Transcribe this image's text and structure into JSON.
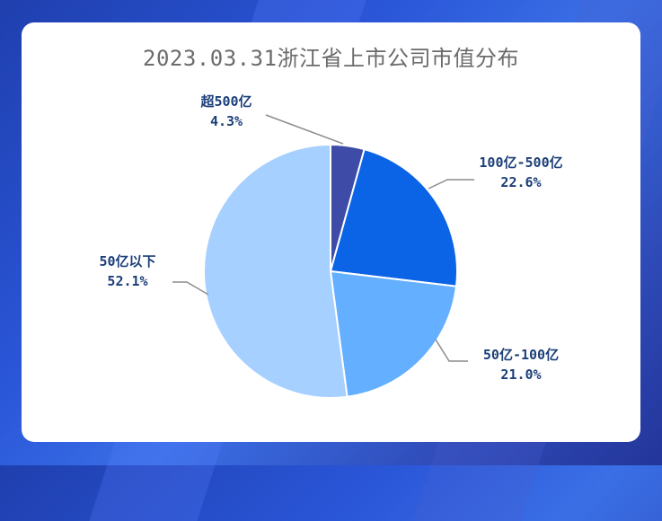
{
  "chart_data": {
    "type": "pie",
    "title": "2023.03.31浙江省上市公司市值分布",
    "slices": [
      {
        "label": "超500亿",
        "value": 4.3,
        "value_text": "4.3%",
        "color": "#3e4ca7"
      },
      {
        "label": "100亿-500亿",
        "value": 22.6,
        "value_text": "22.6%",
        "color": "#0b63e6"
      },
      {
        "label": "50亿-100亿",
        "value": 21.0,
        "value_text": "21.0%",
        "color": "#64afff"
      },
      {
        "label": "50亿以下",
        "value": 52.1,
        "value_text": "52.1%",
        "color": "#a6d0ff"
      }
    ],
    "start_angle_deg": 0,
    "direction": "clockwise",
    "label_color": "#1c3f7a",
    "leader_color": "#8c8c8c"
  }
}
